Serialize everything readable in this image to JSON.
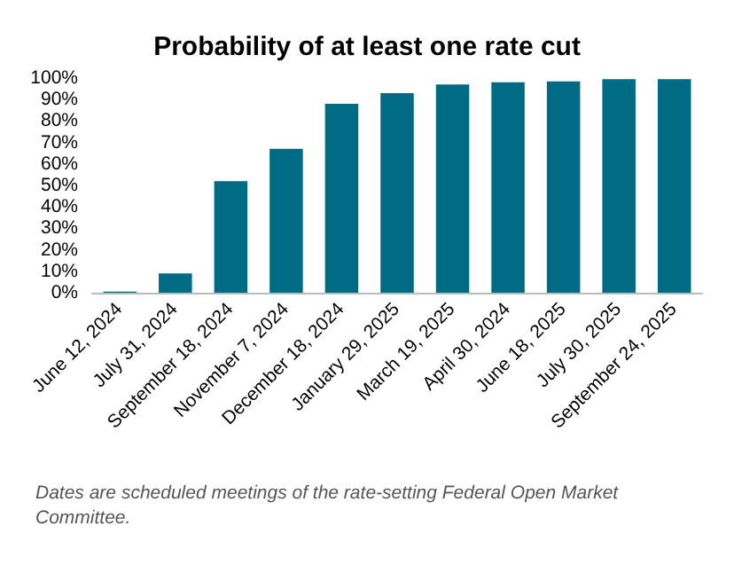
{
  "chart_data": {
    "type": "bar",
    "title": "Probability of at least one rate cut",
    "categories": [
      "June 12, 2024",
      "July 31, 2024",
      "September 18, 2024",
      "November 7, 2024",
      "December 18, 2024",
      "January 29, 2025",
      "March 19, 2025",
      "April 30, 2024",
      "June 18, 2025",
      "July 30, 2025",
      "September 24, 2025"
    ],
    "values": [
      0.5,
      9,
      52,
      67,
      88,
      93,
      97,
      98,
      98.5,
      99.5,
      99.5
    ],
    "color": "#006b84",
    "ylim": [
      0,
      100
    ],
    "yticks": [
      {
        "value": 0,
        "label": "0%"
      },
      {
        "value": 10,
        "label": "10%"
      },
      {
        "value": 20,
        "label": "20%"
      },
      {
        "value": 30,
        "label": "30%"
      },
      {
        "value": 40,
        "label": "40%"
      },
      {
        "value": 50,
        "label": "50%"
      },
      {
        "value": 60,
        "label": "60%"
      },
      {
        "value": 70,
        "label": "70%"
      },
      {
        "value": 80,
        "label": "80%"
      },
      {
        "value": 90,
        "label": "90%"
      },
      {
        "value": 100,
        "label": "100%"
      }
    ],
    "annotations": [
      "Dates are scheduled meetings of the rate-setting Federal Open Market Committee."
    ]
  }
}
